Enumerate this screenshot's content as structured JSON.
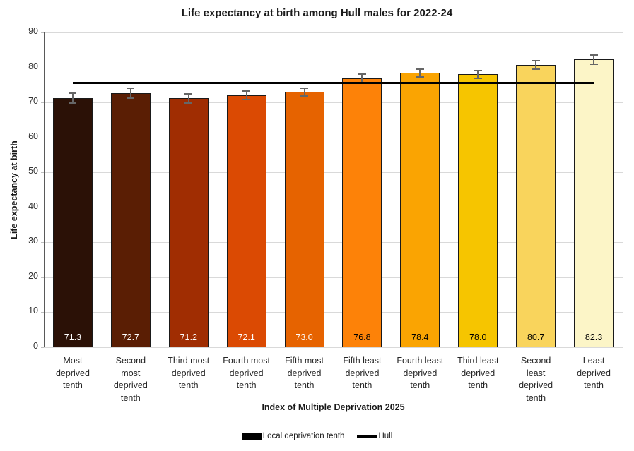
{
  "chart_data": {
    "type": "bar",
    "title": "Life expectancy at birth among Hull males for 2022-24",
    "xlabel": "Index of Multiple Deprivation 2025",
    "ylabel": "Life expectancy at birth",
    "categories": [
      "Most\ndeprived\ntenth",
      "Second\nmost\ndeprived\ntenth",
      "Third most\ndeprived\ntenth",
      "Fourth most\ndeprived\ntenth",
      "Fifth most\ndeprived\ntenth",
      "Fifth least\ndeprived\ntenth",
      "Fourth least\ndeprived\ntenth",
      "Third least\ndeprived\ntenth",
      "Second\nleast\ndeprived\ntenth",
      "Least\ndeprived\ntenth"
    ],
    "values": [
      71.3,
      72.7,
      71.2,
      72.1,
      73.0,
      76.8,
      78.4,
      78.0,
      80.7,
      82.3
    ],
    "value_labels": [
      "71.3",
      "72.7",
      "71.2",
      "72.1",
      "73.0",
      "76.8",
      "78.4",
      "78.0",
      "80.7",
      "82.3"
    ],
    "errors": [
      1.4,
      1.4,
      1.3,
      1.2,
      1.1,
      1.3,
      1.1,
      1.2,
      1.2,
      1.3
    ],
    "bar_colors": [
      "#2B1106",
      "#5A1E04",
      "#A02D02",
      "#DB4A03",
      "#E66300",
      "#FD8208",
      "#FAA402",
      "#F6C500",
      "#F9D45C",
      "#FCF5C7"
    ],
    "value_label_colors": [
      "#ffffff",
      "#ffffff",
      "#ffffff",
      "#ffffff",
      "#ffffff",
      "#000000",
      "#000000",
      "#000000",
      "#000000",
      "#000000"
    ],
    "bar_border_color": "#1a1a1a",
    "error_bar_color": "#666666",
    "reference_line": {
      "label": "Hull",
      "value": 75.5,
      "color": "#000000"
    },
    "y_axis": {
      "min": 0,
      "max": 90,
      "tick_interval": 10,
      "ticks": [
        0,
        10,
        20,
        30,
        40,
        50,
        60,
        70,
        80,
        90
      ]
    },
    "grid": "horizontal",
    "legend": {
      "position": "bottom",
      "entries": [
        {
          "label": "Local deprivation tenth",
          "swatch": "bar",
          "color": "#000000"
        },
        {
          "label": "Hull",
          "swatch": "line",
          "color": "#000000"
        }
      ]
    }
  }
}
